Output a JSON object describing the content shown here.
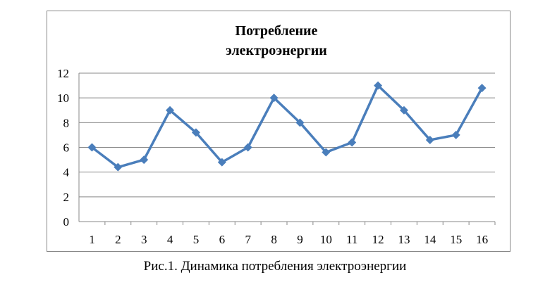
{
  "chart_data": {
    "type": "line",
    "title": [
      "Потребление",
      "электроэнергии"
    ],
    "categories": [
      "1",
      "2",
      "3",
      "4",
      "5",
      "6",
      "7",
      "8",
      "9",
      "10",
      "11",
      "12",
      "13",
      "14",
      "15",
      "16"
    ],
    "series": [
      {
        "color": "#4a7ebb",
        "values": [
          6,
          4.4,
          5,
          9,
          7.2,
          4.8,
          6,
          10,
          8,
          5.6,
          6.4,
          11,
          9,
          6.6,
          7,
          10.8
        ]
      }
    ],
    "ylim": [
      0,
      12
    ],
    "yticks": [
      0,
      2,
      4,
      6,
      8,
      10,
      12
    ],
    "grid": true
  },
  "caption": "Рис.1. Динамика потребления электроэнергии"
}
